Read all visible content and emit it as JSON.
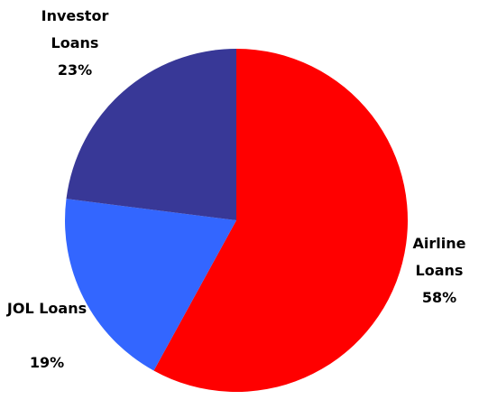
{
  "chart_data": {
    "type": "pie",
    "categories": [
      "Airline Loans",
      "JOL Loans",
      "Investor Loans"
    ],
    "values": [
      58,
      19,
      23
    ],
    "value_labels": [
      "58%",
      "19%",
      "23%"
    ],
    "colors": [
      "#ff0000",
      "#3366ff",
      "#383897"
    ]
  }
}
